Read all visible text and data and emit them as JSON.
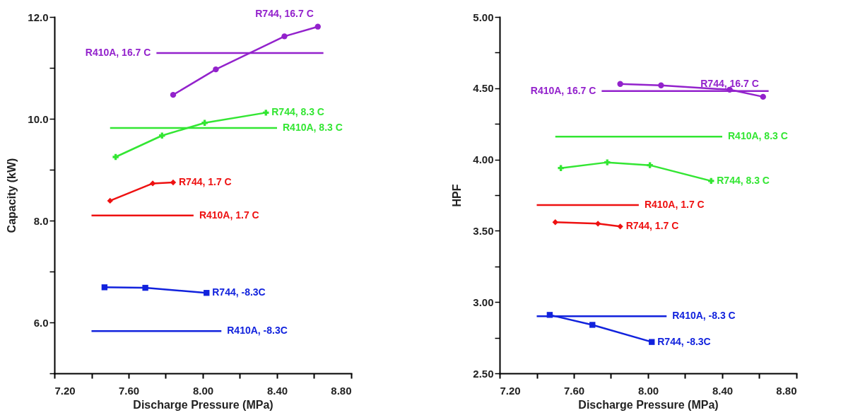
{
  "chart_data": [
    {
      "type": "line",
      "xlabel": "Discharge Pressure (MPa)",
      "ylabel": "Capacity (kW)",
      "grid": false,
      "line_style": "solid",
      "xlim": [
        7.2,
        8.8
      ],
      "xticks": [
        {
          "value": 7.2,
          "label": "7.20"
        },
        {
          "value": 7.4,
          "label": null
        },
        {
          "value": 7.6,
          "label": "7.60"
        },
        {
          "value": 7.8,
          "label": null
        },
        {
          "value": 8.0,
          "label": "8.00"
        },
        {
          "value": 8.2,
          "label": null
        },
        {
          "value": 8.4,
          "label": "8.40"
        },
        {
          "value": 8.6,
          "label": null
        },
        {
          "value": 8.8,
          "label": "8.80"
        }
      ],
      "ylim": [
        5,
        12
      ],
      "yticks": [
        {
          "value": 5,
          "label": null
        },
        {
          "value": 6,
          "label": "6.0"
        },
        {
          "value": 7,
          "label": null
        },
        {
          "value": 8,
          "label": "8.0"
        },
        {
          "value": 9,
          "label": null
        },
        {
          "value": 10,
          "label": "10.0"
        },
        {
          "value": 11,
          "label": null
        },
        {
          "value": 12,
          "label": "12.0"
        }
      ],
      "series": [
        {
          "name": "R744, 16.7 C",
          "color": "#9322cc",
          "marker": "circle",
          "x": [
            7.84,
            8.07,
            8.44,
            8.62
          ],
          "values": [
            10.47,
            10.97,
            11.62,
            11.81
          ]
        },
        {
          "name": "R410A, 16.7 C",
          "color": "#9322cc",
          "marker": "none",
          "x": [
            7.75,
            8.65
          ],
          "values": [
            11.29,
            11.29
          ]
        },
        {
          "name": "R744, 8.3 C",
          "color": "#33e633",
          "marker": "cross",
          "x": [
            7.53,
            7.78,
            8.01,
            8.34
          ],
          "values": [
            9.25,
            9.67,
            9.92,
            10.12
          ]
        },
        {
          "name": "R410A, 8.3 C",
          "color": "#33e633",
          "marker": "none",
          "x": [
            7.5,
            8.4
          ],
          "values": [
            9.82,
            9.82
          ]
        },
        {
          "name": "R744, 1.7 C",
          "color": "#ee1111",
          "marker": "diamond",
          "x": [
            7.5,
            7.73,
            7.84
          ],
          "values": [
            8.39,
            8.73,
            8.75
          ]
        },
        {
          "name": "R410A, 1.7 C",
          "color": "#ee1111",
          "marker": "none",
          "x": [
            7.4,
            7.95
          ],
          "values": [
            8.1,
            8.1
          ]
        },
        {
          "name": "R744, -8.3C",
          "color": "#1122dd",
          "marker": "square",
          "x": [
            7.47,
            7.69,
            8.02
          ],
          "values": [
            6.69,
            6.68,
            6.58
          ]
        },
        {
          "name": "R410A, -8.3C",
          "color": "#1122dd",
          "marker": "none",
          "x": [
            7.4,
            8.1
          ],
          "values": [
            5.83,
            5.83
          ]
        }
      ]
    },
    {
      "type": "line",
      "xlabel": "Discharge Pressure (MPa)",
      "ylabel": "HPF",
      "grid": false,
      "line_style": "solid",
      "xlim": [
        7.2,
        8.8
      ],
      "xticks": [
        {
          "value": 7.2,
          "label": "7.20"
        },
        {
          "value": 7.4,
          "label": null
        },
        {
          "value": 7.6,
          "label": "7.60"
        },
        {
          "value": 7.8,
          "label": null
        },
        {
          "value": 8.0,
          "label": "8.00"
        },
        {
          "value": 8.2,
          "label": null
        },
        {
          "value": 8.4,
          "label": "8.40"
        },
        {
          "value": 8.6,
          "label": null
        },
        {
          "value": 8.8,
          "label": "8.80"
        }
      ],
      "ylim": [
        2.5,
        5
      ],
      "yticks": [
        {
          "value": 2.5,
          "label": "2.50"
        },
        {
          "value": 2.75,
          "label": null
        },
        {
          "value": 3,
          "label": "3.00"
        },
        {
          "value": 3.25,
          "label": null
        },
        {
          "value": 3.5,
          "label": "3.50"
        },
        {
          "value": 3.75,
          "label": null
        },
        {
          "value": 4,
          "label": "4.00"
        },
        {
          "value": 4.25,
          "label": null
        },
        {
          "value": 4.5,
          "label": "4.50"
        },
        {
          "value": 4.75,
          "label": null
        },
        {
          "value": 5,
          "label": "5.00"
        }
      ],
      "series": [
        {
          "name": "R744, 16.7 C",
          "color": "#9322cc",
          "marker": "circle",
          "x": [
            7.85,
            8.07,
            8.44,
            8.62
          ],
          "values": [
            4.53,
            4.52,
            4.49,
            4.44
          ]
        },
        {
          "name": "R410A, 16.7 C",
          "color": "#9322cc",
          "marker": "none",
          "x": [
            7.75,
            8.65
          ],
          "values": [
            4.48,
            4.48
          ]
        },
        {
          "name": "R744, 8.3 C",
          "color": "#33e633",
          "marker": "cross",
          "x": [
            7.53,
            7.78,
            8.01,
            8.34
          ],
          "values": [
            3.94,
            3.98,
            3.96,
            3.85
          ]
        },
        {
          "name": "R410A, 8.3 C",
          "color": "#33e633",
          "marker": "none",
          "x": [
            7.5,
            8.4
          ],
          "values": [
            4.16,
            4.16
          ]
        },
        {
          "name": "R744, 1.7 C",
          "color": "#ee1111",
          "marker": "diamond",
          "x": [
            7.5,
            7.73,
            7.85
          ],
          "values": [
            3.56,
            3.55,
            3.53
          ]
        },
        {
          "name": "R410A, 1.7 C",
          "color": "#ee1111",
          "marker": "none",
          "x": [
            7.4,
            7.95
          ],
          "values": [
            3.68,
            3.68
          ]
        },
        {
          "name": "R744, -8.3C",
          "color": "#1122dd",
          "marker": "square",
          "x": [
            7.47,
            7.7,
            8.02
          ],
          "values": [
            2.91,
            2.84,
            2.72
          ]
        },
        {
          "name": "R410A, -8.3 C",
          "color": "#1122dd",
          "marker": "none",
          "x": [
            7.4,
            8.1
          ],
          "values": [
            2.9,
            2.9
          ]
        }
      ]
    }
  ]
}
